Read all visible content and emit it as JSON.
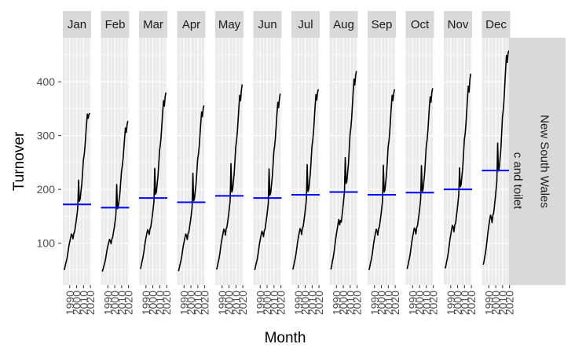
{
  "chart_data": {
    "type": "line",
    "subtype": "seasonal-subseries",
    "xlabel": "Month",
    "ylabel": "Turnover",
    "ylim": [
      22,
      482
    ],
    "y_ticks": [
      100,
      200,
      300,
      400
    ],
    "year_range": [
      1982,
      2019
    ],
    "year_ticks": [
      1990,
      2000,
      2010,
      2020
    ],
    "year_tick_labels": [
      "1990",
      "2000",
      "2010",
      "2020"
    ],
    "facet_row_labels": [
      "New South Wales",
      "Pharmaceutical, cosmetic and toiletry goods retailing"
    ],
    "mean_line_color": "#0000ff",
    "series_color": "#000000",
    "panel_background": "#ebebeb",
    "strip_background": "#d9d9d9",
    "panels": [
      {
        "month": "Jan",
        "mean": 172,
        "values": [
          50,
          56,
          63,
          68,
          76,
          86,
          96,
          103,
          110,
          117,
          114,
          108,
          118,
          121,
          131,
          141,
          153,
          166,
          217,
          178,
          182,
          196,
          209,
          230,
          254,
          264,
          279,
          300,
          322,
          340,
          332,
          339,
          342
        ]
      },
      {
        "month": "Feb",
        "mean": 166,
        "values": [
          47,
          52,
          58,
          63,
          70,
          79,
          88,
          95,
          101,
          107,
          104,
          99,
          108,
          111,
          120,
          129,
          140,
          152,
          209,
          164,
          168,
          180,
          192,
          212,
          233,
          243,
          257,
          276,
          296,
          314,
          306,
          320,
          327
        ]
      },
      {
        "month": "Mar",
        "mean": 184,
        "values": [
          52,
          58,
          66,
          72,
          81,
          91,
          102,
          110,
          118,
          125,
          122,
          116,
          126,
          130,
          140,
          151,
          164,
          178,
          239,
          191,
          195,
          210,
          224,
          247,
          272,
          283,
          299,
          322,
          345,
          365,
          355,
          372,
          380
        ]
      },
      {
        "month": "Apr",
        "mean": 176,
        "values": [
          48,
          54,
          61,
          67,
          75,
          85,
          95,
          102,
          110,
          117,
          114,
          107,
          118,
          121,
          131,
          141,
          153,
          166,
          230,
          179,
          183,
          197,
          210,
          232,
          256,
          266,
          281,
          303,
          325,
          344,
          335,
          351,
          356
        ]
      },
      {
        "month": "May",
        "mean": 188,
        "values": [
          51,
          57,
          65,
          71,
          80,
          91,
          102,
          110,
          118,
          126,
          123,
          115,
          127,
          130,
          141,
          152,
          165,
          180,
          248,
          195,
          199,
          214,
          229,
          253,
          279,
          290,
          307,
          330,
          354,
          375,
          365,
          383,
          395
        ]
      },
      {
        "month": "Jun",
        "mean": 184,
        "values": [
          50,
          56,
          63,
          69,
          78,
          88,
          99,
          107,
          115,
          122,
          119,
          112,
          123,
          126,
          137,
          148,
          160,
          174,
          238,
          189,
          193,
          208,
          222,
          245,
          270,
          281,
          297,
          320,
          343,
          362,
          352,
          368,
          378
        ]
      },
      {
        "month": "Jul",
        "mean": 190,
        "values": [
          51,
          57,
          65,
          71,
          80,
          91,
          102,
          111,
          119,
          127,
          124,
          116,
          128,
          131,
          142,
          153,
          166,
          181,
          246,
          196,
          200,
          215,
          230,
          254,
          280,
          291,
          308,
          331,
          355,
          376,
          366,
          380,
          386
        ]
      },
      {
        "month": "Aug",
        "mean": 195,
        "values": [
          51,
          58,
          67,
          74,
          84,
          96,
          108,
          118,
          127,
          136,
          144,
          134,
          142,
          139,
          152,
          165,
          180,
          196,
          259,
          211,
          215,
          232,
          248,
          274,
          302,
          314,
          332,
          357,
          383,
          405,
          394,
          412,
          420
        ]
      },
      {
        "month": "Sep",
        "mean": 190,
        "values": [
          50,
          56,
          64,
          70,
          79,
          90,
          101,
          110,
          118,
          126,
          123,
          115,
          127,
          130,
          141,
          152,
          165,
          180,
          245,
          195,
          199,
          214,
          229,
          253,
          279,
          290,
          307,
          330,
          354,
          375,
          365,
          378,
          386
        ]
      },
      {
        "month": "Oct",
        "mean": 194,
        "values": [
          52,
          58,
          66,
          72,
          81,
          92,
          103,
          112,
          120,
          128,
          125,
          117,
          129,
          132,
          143,
          154,
          167,
          182,
          244,
          196,
          200,
          215,
          230,
          254,
          280,
          291,
          308,
          331,
          355,
          372,
          362,
          380,
          388
        ]
      },
      {
        "month": "Nov",
        "mean": 200,
        "values": [
          53,
          59,
          67,
          74,
          84,
          95,
          107,
          116,
          125,
          133,
          130,
          121,
          134,
          137,
          149,
          161,
          175,
          190,
          240,
          205,
          209,
          225,
          240,
          265,
          292,
          303,
          321,
          345,
          370,
          392,
          381,
          405,
          415
        ]
      },
      {
        "month": "Dec",
        "mean": 235,
        "values": [
          60,
          67,
          76,
          84,
          96,
          109,
          122,
          133,
          143,
          152,
          148,
          138,
          152,
          156,
          169,
          183,
          199,
          216,
          286,
          234,
          239,
          257,
          274,
          303,
          334,
          347,
          367,
          395,
          423,
          449,
          436,
          452,
          458
        ]
      }
    ]
  }
}
